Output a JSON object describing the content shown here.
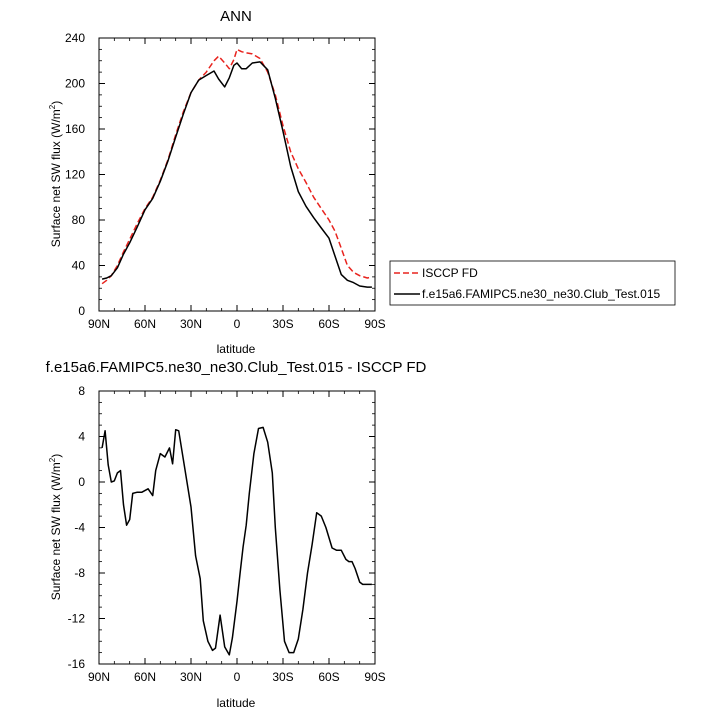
{
  "chart_data": [
    {
      "type": "line",
      "title": "ANN",
      "xlabel": "latitude",
      "ylabel": "Surface net SW flux (W/m²)",
      "ylabel_main": "Surface net SW flux (W/m",
      "ylabel_sup": "2",
      "ylabel_end": ")",
      "xlim": [
        90,
        -90
      ],
      "ylim": [
        0,
        240
      ],
      "xticks": [
        90,
        60,
        30,
        0,
        -30,
        -60,
        -90
      ],
      "xtick_labels": [
        "90N",
        "60N",
        "30N",
        "0",
        "30S",
        "60S",
        "90S"
      ],
      "yticks": [
        0,
        40,
        80,
        120,
        160,
        200,
        240
      ],
      "ytick_labels": [
        "0",
        "40",
        "80",
        "120",
        "160",
        "200",
        "240"
      ],
      "legend_position": "outside-right",
      "series": [
        {
          "name": "ISCCP FD",
          "color": "#e8231e",
          "dash": "dashed",
          "x": [
            88,
            85,
            82,
            78,
            74,
            70,
            65,
            60,
            55,
            50,
            45,
            40,
            35,
            30,
            25,
            20,
            15,
            12,
            8,
            5,
            2,
            0,
            -3,
            -6,
            -10,
            -15,
            -20,
            -25,
            -30,
            -35,
            -40,
            -45,
            -50,
            -55,
            -60,
            -64,
            -68,
            -72,
            -76,
            -80,
            -85,
            -88
          ],
          "values": [
            24,
            27,
            31,
            40,
            52,
            63,
            77,
            90,
            100,
            115,
            133,
            155,
            175,
            192,
            203,
            210,
            220,
            224,
            218,
            213,
            221,
            230,
            228,
            227,
            226,
            222,
            210,
            190,
            163,
            140,
            125,
            113,
            100,
            90,
            80,
            70,
            55,
            40,
            34,
            31,
            29,
            30
          ]
        },
        {
          "name": "f.e15a6.FAMIPC5.ne30_ne30.Club_Test.015",
          "color": "#000000",
          "dash": "solid",
          "x": [
            88,
            85,
            82,
            78,
            74,
            70,
            65,
            60,
            55,
            50,
            45,
            40,
            35,
            30,
            25,
            20,
            15,
            12,
            8,
            5,
            2,
            0,
            -3,
            -6,
            -10,
            -15,
            -20,
            -25,
            -30,
            -35,
            -40,
            -45,
            -50,
            -55,
            -60,
            -64,
            -68,
            -72,
            -76,
            -80,
            -85,
            -88
          ],
          "values": [
            28,
            29,
            31,
            38,
            50,
            60,
            74,
            89,
            99,
            114,
            132,
            153,
            173,
            192,
            203,
            207,
            211,
            204,
            197,
            205,
            216,
            218,
            213,
            213,
            218,
            219,
            212,
            187,
            158,
            127,
            105,
            92,
            82,
            73,
            64,
            48,
            32,
            27,
            25,
            22,
            21,
            21
          ]
        }
      ]
    },
    {
      "type": "line",
      "title": "f.e15a6.FAMIPC5.ne30_ne30.Club_Test.015 - ISCCP FD",
      "xlabel": "latitude",
      "ylabel": "Surface net SW flux (W/m²)",
      "ylabel_main": "Surface net SW flux (W/m",
      "ylabel_sup": "2",
      "ylabel_end": ")",
      "xlim": [
        90,
        -90
      ],
      "ylim": [
        -16,
        8
      ],
      "xticks": [
        90,
        60,
        30,
        0,
        -30,
        -60,
        -90
      ],
      "xtick_labels": [
        "90N",
        "60N",
        "30N",
        "0",
        "30S",
        "60S",
        "90S"
      ],
      "yticks": [
        -16,
        -12,
        -8,
        -4,
        0,
        4,
        8
      ],
      "ytick_labels": [
        "-16",
        "-12",
        "-8",
        "-4",
        "0",
        "4",
        "8"
      ],
      "series": [
        {
          "color": "#000000",
          "dash": "solid",
          "x": [
            88,
            86,
            84,
            82,
            80,
            78,
            76,
            74,
            72,
            70,
            68,
            65,
            62,
            58,
            55,
            53,
            50,
            47,
            44,
            42,
            40,
            38,
            35,
            32,
            30,
            27,
            24,
            22,
            19,
            16,
            14,
            11,
            8,
            5,
            3,
            0,
            -2,
            -4,
            -6,
            -8,
            -11,
            -14,
            -17,
            -20,
            -23,
            -25,
            -28,
            -31,
            -34,
            -37,
            -40,
            -43,
            -46,
            -49,
            -52,
            -55,
            -58,
            -62,
            -65,
            -68,
            -71,
            -73,
            -75,
            -77,
            -80,
            -82,
            -84,
            -86,
            -88
          ],
          "values": [
            3.0,
            4.5,
            1.5,
            0.0,
            0.1,
            0.8,
            1.0,
            -2.0,
            -3.8,
            -3.3,
            -1.0,
            -0.9,
            -0.9,
            -0.6,
            -1.2,
            1.0,
            2.5,
            2.2,
            3.0,
            1.6,
            4.6,
            4.5,
            2.0,
            -0.5,
            -2.2,
            -6.5,
            -8.5,
            -12.2,
            -14.0,
            -14.8,
            -14.6,
            -11.7,
            -14.5,
            -15.2,
            -13.7,
            -10.5,
            -8.0,
            -5.7,
            -3.8,
            -1.0,
            2.5,
            4.7,
            4.8,
            3.5,
            0.8,
            -4.0,
            -9.5,
            -14.0,
            -15.0,
            -15.0,
            -13.8,
            -11.2,
            -8.0,
            -5.5,
            -2.7,
            -3.0,
            -4.0,
            -5.8,
            -6.0,
            -6.0,
            -6.8,
            -7.0,
            -7.0,
            -7.6,
            -8.8,
            -9.0,
            -9.0,
            -9.0,
            -9.0
          ]
        }
      ]
    }
  ]
}
